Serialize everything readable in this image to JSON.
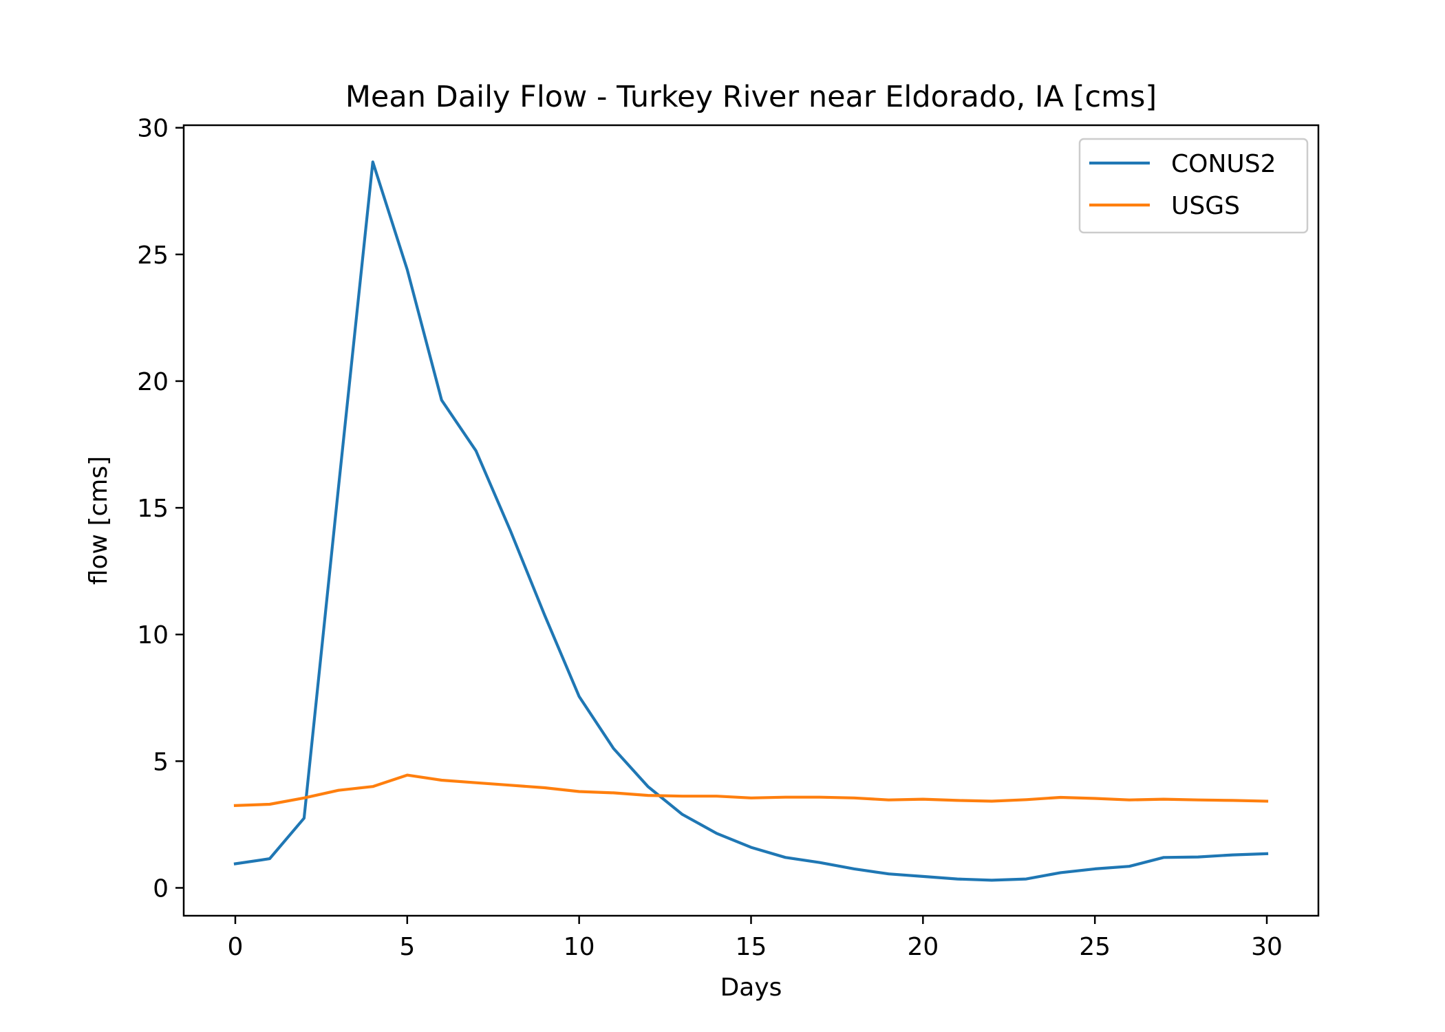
{
  "chart_data": {
    "type": "line",
    "title": "Mean Daily Flow - Turkey River near Eldorado, IA [cms]",
    "xlabel": "Days",
    "ylabel": "flow [cms]",
    "xlim": [
      -1.5,
      31.5
    ],
    "ylim": [
      -1.1,
      30.1
    ],
    "xticks": [
      0,
      5,
      10,
      15,
      20,
      25,
      30
    ],
    "yticks": [
      0,
      5,
      10,
      15,
      20,
      25,
      30
    ],
    "grid": false,
    "legend_position": "top-right",
    "x": [
      0,
      1,
      2,
      3,
      4,
      5,
      6,
      7,
      8,
      9,
      10,
      11,
      12,
      13,
      14,
      15,
      16,
      17,
      18,
      19,
      20,
      21,
      22,
      23,
      24,
      25,
      26,
      27,
      28,
      29,
      30
    ],
    "series": [
      {
        "name": "CONUS2",
        "color": "#1f77b4",
        "values": [
          0.95,
          1.15,
          2.75,
          15.8,
          28.65,
          24.4,
          19.25,
          17.25,
          14.1,
          10.75,
          7.55,
          5.5,
          4.0,
          2.9,
          2.15,
          1.6,
          1.2,
          1.0,
          0.75,
          0.55,
          0.45,
          0.35,
          0.3,
          0.35,
          0.6,
          0.75,
          0.85,
          1.2,
          1.22,
          1.3,
          1.35
        ]
      },
      {
        "name": "USGS",
        "color": "#ff7f0e",
        "values": [
          3.25,
          3.3,
          3.55,
          3.85,
          4.0,
          4.45,
          4.25,
          4.15,
          4.05,
          3.95,
          3.8,
          3.75,
          3.65,
          3.62,
          3.62,
          3.55,
          3.58,
          3.58,
          3.55,
          3.47,
          3.5,
          3.45,
          3.42,
          3.48,
          3.57,
          3.53,
          3.47,
          3.5,
          3.47,
          3.45,
          3.42
        ]
      }
    ]
  }
}
